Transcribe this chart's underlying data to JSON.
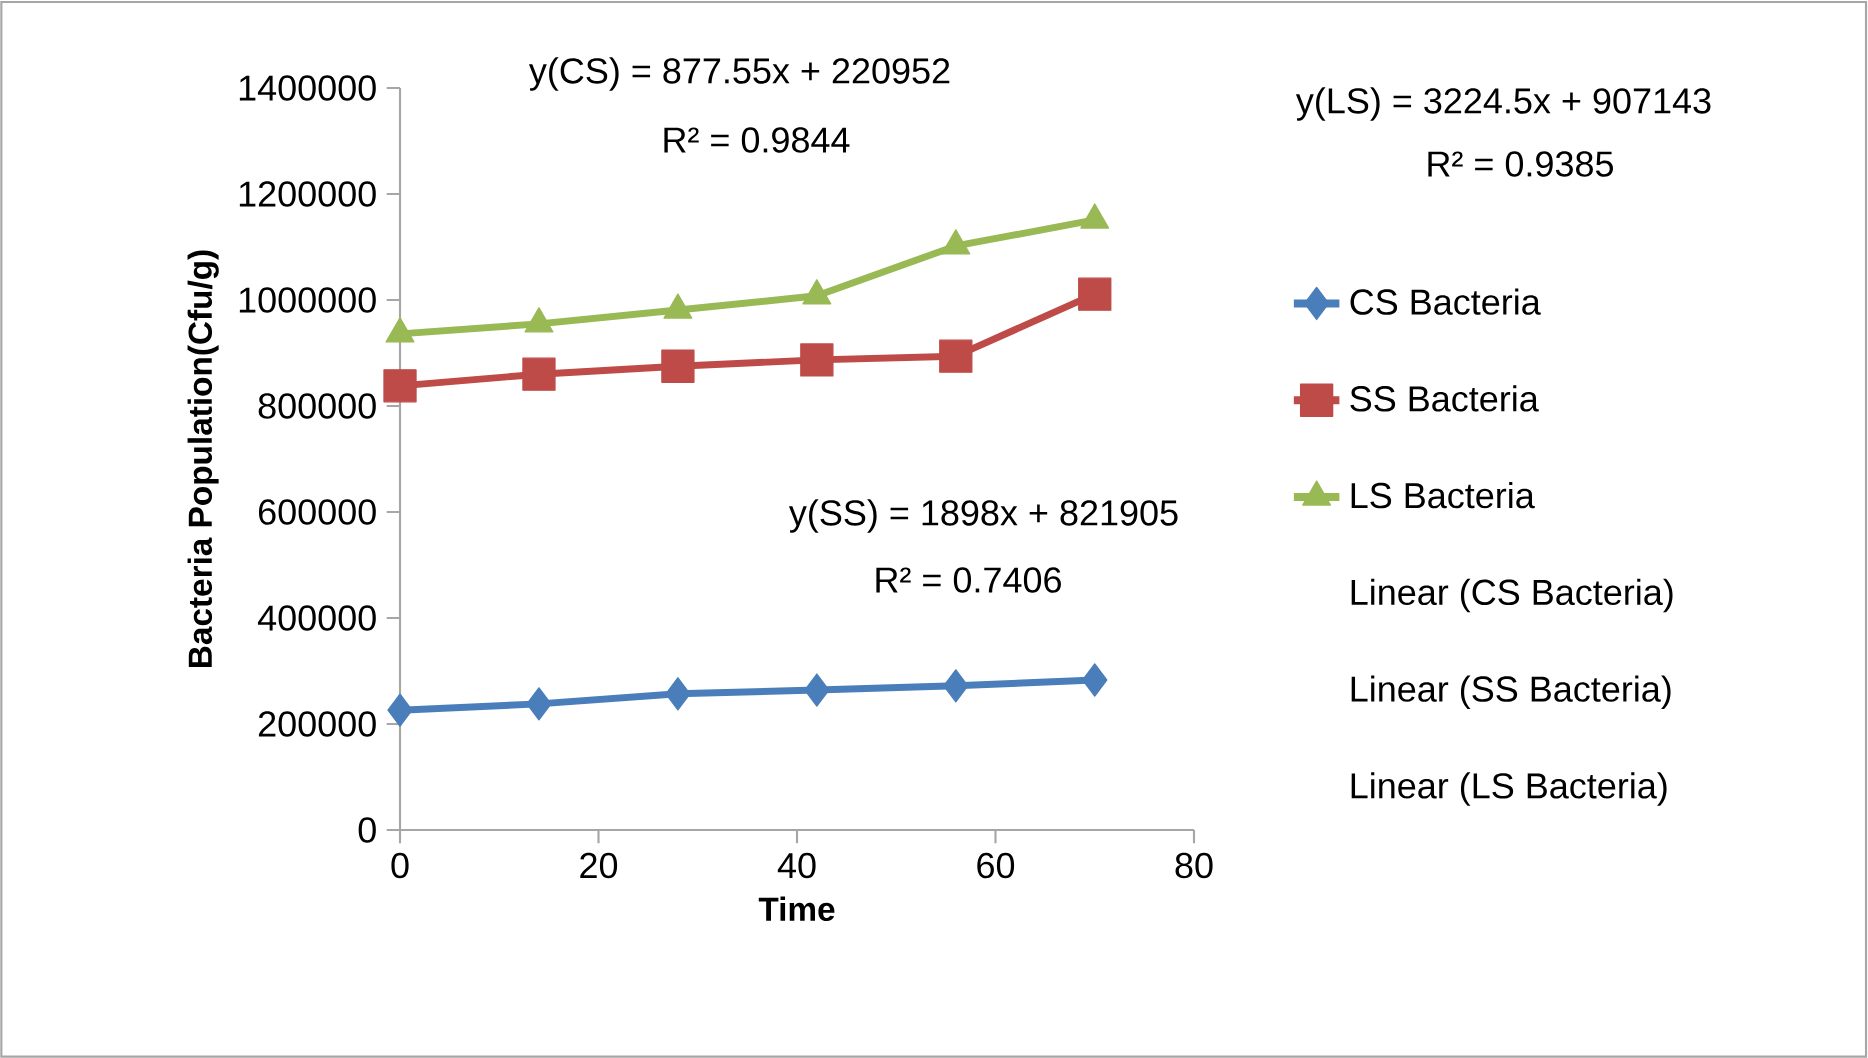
{
  "chart_data": {
    "type": "line",
    "xlabel": "Time",
    "ylabel": "Bacteria Population(Cfu/g)",
    "x": [
      0,
      14,
      28,
      42,
      56,
      70
    ],
    "series": [
      {
        "name": "CS Bacteria",
        "color": "#4a7ebb",
        "marker": "diamond",
        "values": [
          226000,
          238000,
          257000,
          264000,
          272000,
          283000
        ]
      },
      {
        "name": "SS Bacteria",
        "color": "#be4b48",
        "marker": "square",
        "values": [
          838000,
          860000,
          875000,
          887000,
          894000,
          1011000
        ]
      },
      {
        "name": "LS Bacteria",
        "color": "#98b954",
        "marker": "triangle",
        "values": [
          936000,
          955000,
          981000,
          1008000,
          1102000,
          1151000
        ]
      }
    ],
    "xlim": [
      0,
      80
    ],
    "xticks": [
      0,
      20,
      40,
      60,
      80
    ],
    "ylim": [
      0,
      1400000
    ],
    "yticks": [
      0,
      200000,
      400000,
      600000,
      800000,
      1000000,
      1200000,
      1400000
    ],
    "grid": false,
    "legend": "right",
    "line_style": "solid",
    "annotations": [
      "y(CS) = 877.55x + 220952",
      "R² = 0.9844",
      "y(LS) = 3224.5x + 907143",
      "R² = 0.9385",
      "y(SS) = 1898x + 821905",
      "R² = 0.7406",
      "Linear (CS Bacteria)",
      "Linear (SS Bacteria)",
      "Linear (LS Bacteria)"
    ]
  }
}
